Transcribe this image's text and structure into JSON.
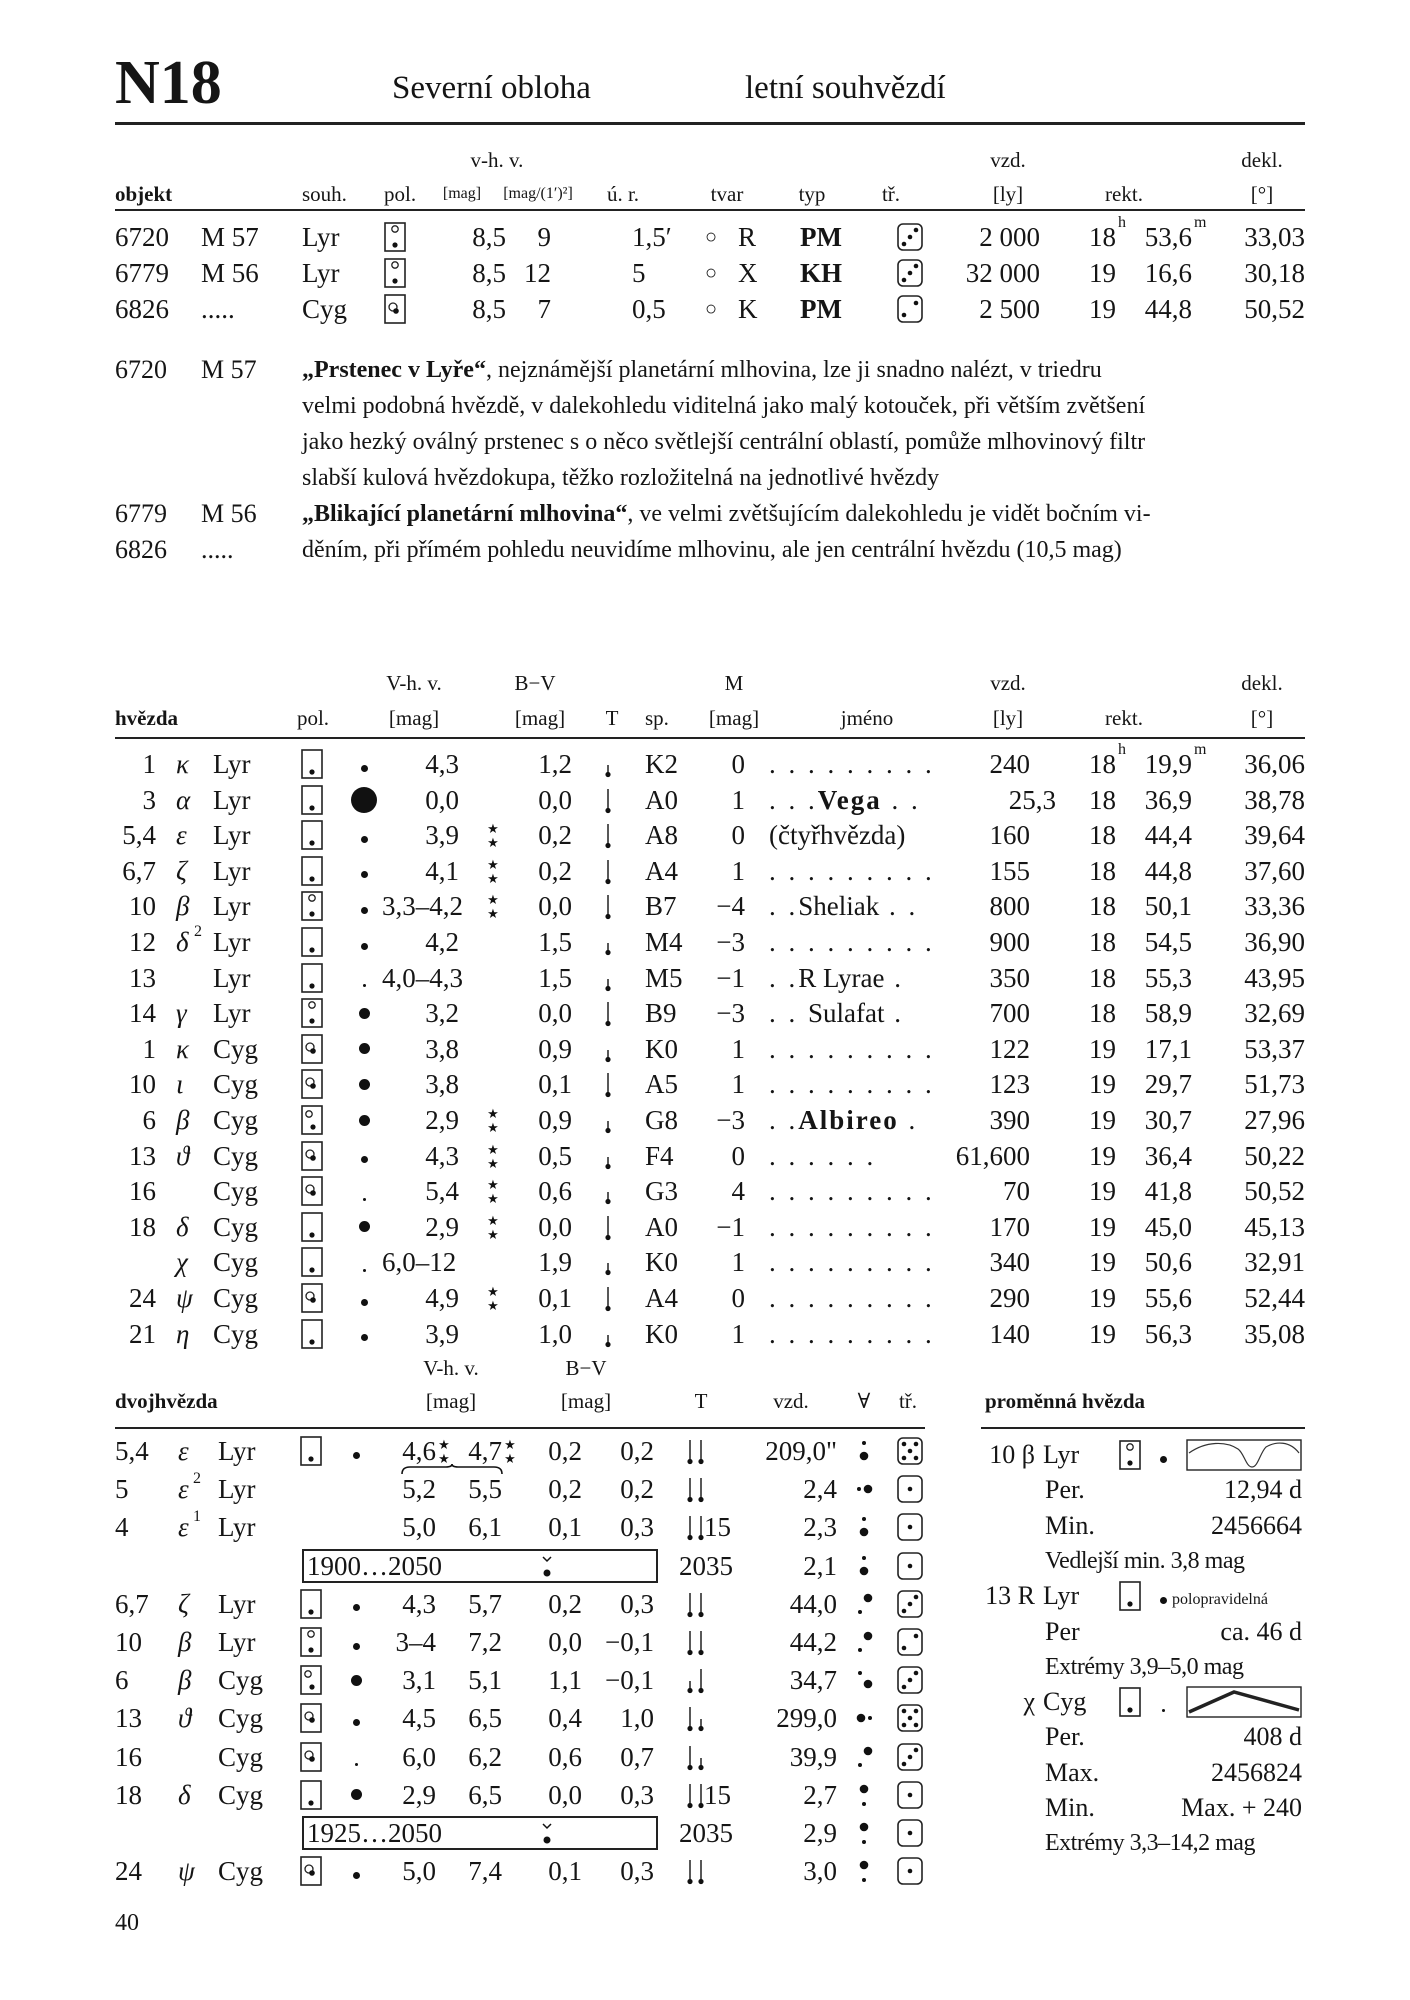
{
  "header": {
    "code": "N18",
    "region": "Severní obloha",
    "season": "letní souhvězdí"
  },
  "objects": {
    "headers": {
      "vhv": "v-h. v.",
      "vzd": "vzd.",
      "dekl": "dekl.",
      "objekt": "objekt",
      "souh": "souh.",
      "pol": "pol.",
      "mag": "[mag]",
      "sb": "[mag/(1′)²]",
      "ur": "ú. r.",
      "tvar": "tvar",
      "typ": "typ",
      "tr": "tř.",
      "ly": "[ly]",
      "rekt": "rekt.",
      "deg": "[°]"
    },
    "rows": [
      {
        "ngc": "6720",
        "m": "M 57",
        "const": "Lyr",
        "pol": "b",
        "vmag": "8,5",
        "sb": "9",
        "size": "1,5′",
        "shape_symbol": "○",
        "shape": "R",
        "type": "PM",
        "dice": 3,
        "vzd": "2 000",
        "ra_h": "18",
        "ra_m": "53,6",
        "dec": "33,03"
      },
      {
        "ngc": "6779",
        "m": "M 56",
        "const": "Lyr",
        "pol": "b",
        "vmag": "8,5",
        "sb": "12",
        "size": "5",
        "shape_symbol": "○",
        "shape": "X",
        "type": "KH",
        "dice": 3,
        "vzd": "32 000",
        "ra_h": "19",
        "ra_m": "16,6",
        "dec": "30,18"
      },
      {
        "ngc": "6826",
        "m": ".....",
        "const": "Cyg",
        "pol": "c",
        "vmag": "8,5",
        "sb": "7",
        "size": "0,5",
        "shape_symbol": "○",
        "shape": "K",
        "type": "PM",
        "dice": 2,
        "vzd": "2 500",
        "ra_h": "19",
        "ra_m": "44,8",
        "dec": "50,52"
      }
    ],
    "ra_units": [
      "h",
      "m"
    ]
  },
  "descriptions": [
    {
      "ngc": "6720",
      "m": "M 57",
      "bold": "„Prstenec v Lyře“",
      "text": ", nejznámější planetární mlhovina, lze ji snadno nalézt, v triedru"
    },
    {
      "ngc": "",
      "m": "",
      "bold": "",
      "text": "velmi podobná hvězdě, v dalekohledu viditelná jako malý kotouček, při větším zvětšení"
    },
    {
      "ngc": "",
      "m": "",
      "bold": "",
      "text": "jako hezký oválný prstenec s o něco světlejší centrální oblastí, pomůže mlhovinový filtr"
    },
    {
      "ngc": "",
      "m": "",
      "bold": "",
      "text": "slabší kulová hvězdokupa, těžko rozložitelná na jednotlivé hvězdy"
    },
    {
      "ngc": "6779",
      "m": "M 56",
      "bold": "„Blikající planetární mlhovina“",
      "text": ", ve velmi zvětšujícím dalekohledu je vidět bočním vi-"
    },
    {
      "ngc": "6826",
      "m": ".....",
      "bold": "",
      "text": "děním, při přímém pohledu neuvidíme mlhovinu, ale jen centrální hvězdu (10,5 mag)"
    }
  ],
  "stars": {
    "headers": {
      "vhv": "V-h. v.",
      "bv": "B−V",
      "M": "M",
      "vzd": "vzd.",
      "dekl": "dekl.",
      "hvezda": "hvězda",
      "pol": "pol.",
      "mag": "[mag]",
      "T": "T",
      "sp": "sp.",
      "jmeno": "jméno",
      "ly": "[ly]",
      "rekt": "rekt.",
      "deg": "[°]"
    },
    "rows": [
      {
        "num": "1",
        "greek": "κ",
        "sup": "",
        "const": "Lyr",
        "pol": "a",
        "dot": "s",
        "vmag": "4,3",
        "double": false,
        "bv": "1,2",
        "T": "short",
        "sp": "K2",
        "M": "0",
        "pre": ". . . . . . . . .",
        "name": "",
        "post": "",
        "bold": false,
        "vzd": "240",
        "ra_h": "18",
        "ra_m": "19,9",
        "dec": "36,06"
      },
      {
        "num": "3",
        "greek": "α",
        "sup": "",
        "const": "Lyr",
        "pol": "a",
        "dot": "xl",
        "vmag": "0,0",
        "double": false,
        "bv": "0,0",
        "T": "long",
        "sp": "A0",
        "M": "1",
        "pre": ". . .",
        "name": "Vega",
        "post": " . .",
        "bold": true,
        "vzd": "25,3",
        "ra_h": "18",
        "ra_m": "36,9",
        "dec": "38,78"
      },
      {
        "num": "5,4",
        "greek": "ε",
        "sup": "",
        "const": "Lyr",
        "pol": "a",
        "dot": "s",
        "vmag": "3,9",
        "double": true,
        "bv": "0,2",
        "T": "long",
        "sp": "A8",
        "M": "0",
        "pre": "",
        "name": "(čtyřhvězda)",
        "post": "",
        "bold": false,
        "vzd": "160",
        "ra_h": "18",
        "ra_m": "44,4",
        "dec": "39,64"
      },
      {
        "num": "6,7",
        "greek": "ζ",
        "sup": "",
        "const": "Lyr",
        "pol": "a",
        "dot": "s",
        "vmag": "4,1",
        "double": true,
        "bv": "0,2",
        "T": "long",
        "sp": "A4",
        "M": "1",
        "pre": ". . . . . . . . .",
        "name": "",
        "post": "",
        "bold": false,
        "vzd": "155",
        "ra_h": "18",
        "ra_m": "44,8",
        "dec": "37,60"
      },
      {
        "num": "10",
        "greek": "β",
        "sup": "",
        "const": "Lyr",
        "pol": "b",
        "dot": "s",
        "vmag": "3,3–4,2",
        "double": true,
        "bv": "0,0",
        "T": "long",
        "sp": "B7",
        "M": "−4",
        "pre": ". .",
        "name": "Sheliak",
        "post": " . .",
        "bold": false,
        "vzd": "800",
        "ra_h": "18",
        "ra_m": "50,1",
        "dec": "33,36"
      },
      {
        "num": "12",
        "greek": "δ",
        "sup": "2",
        "const": "Lyr",
        "pol": "a",
        "dot": "s",
        "vmag": "4,2",
        "double": false,
        "bv": "1,5",
        "T": "short",
        "sp": "M4",
        "M": "−3",
        "pre": ". . . . . . . . .",
        "name": "",
        "post": "",
        "bold": false,
        "vzd": "900",
        "ra_h": "18",
        "ra_m": "54,5",
        "dec": "36,90"
      },
      {
        "num": "13",
        "greek": "",
        "sup": "",
        "const": "Lyr",
        "pol": "a",
        "dot": "xs",
        "vmag": "4,0–4,3",
        "double": false,
        "bv": "1,5",
        "T": "short",
        "sp": "M5",
        "M": "−1",
        "pre": ". .",
        "name": "R Lyrae",
        "post": " .",
        "bold": false,
        "vzd": "350",
        "ra_h": "18",
        "ra_m": "55,3",
        "dec": "43,95"
      },
      {
        "num": "14",
        "greek": "γ",
        "sup": "",
        "const": "Lyr",
        "pol": "b",
        "dot": "m",
        "vmag": "3,2",
        "double": false,
        "bv": "0,0",
        "T": "long",
        "sp": "B9",
        "M": "−3",
        "pre": ". . ",
        "name": "Sulafat",
        "post": " .",
        "bold": false,
        "vzd": "700",
        "ra_h": "18",
        "ra_m": "58,9",
        "dec": "32,69"
      },
      {
        "num": "1",
        "greek": "κ",
        "sup": "",
        "const": "Cyg",
        "pol": "c",
        "dot": "m",
        "vmag": "3,8",
        "double": false,
        "bv": "0,9",
        "T": "short",
        "sp": "K0",
        "M": "1",
        "pre": ". . . . . . . . .",
        "name": "",
        "post": "",
        "bold": false,
        "vzd": "122",
        "ra_h": "19",
        "ra_m": "17,1",
        "dec": "53,37"
      },
      {
        "num": "10",
        "greek": "ι",
        "sup": "",
        "const": "Cyg",
        "pol": "c",
        "dot": "m",
        "vmag": "3,8",
        "double": false,
        "bv": "0,1",
        "T": "long",
        "sp": "A5",
        "M": "1",
        "pre": ". . . . . . . . .",
        "name": "",
        "post": "",
        "bold": false,
        "vzd": "123",
        "ra_h": "19",
        "ra_m": "29,7",
        "dec": "51,73"
      },
      {
        "num": "6",
        "greek": "β",
        "sup": "",
        "const": "Cyg",
        "pol": "d",
        "dot": "m",
        "vmag": "2,9",
        "double": true,
        "bv": "0,9",
        "T": "short",
        "sp": "G8",
        "M": "−3",
        "pre": ". .",
        "name": "Albireo",
        "post": " .",
        "bold": true,
        "vzd": "390",
        "ra_h": "19",
        "ra_m": "30,7",
        "dec": "27,96"
      },
      {
        "num": "13",
        "greek": "ϑ",
        "sup": "",
        "const": "Cyg",
        "pol": "c",
        "dot": "s",
        "vmag": "4,3",
        "double": true,
        "bv": "0,5",
        "T": "short",
        "sp": "F4",
        "M": "0",
        "pre": ". . . . . .",
        "name": "",
        "post": "",
        "bold": false,
        "vzd": "61,600",
        "ra_h": "19",
        "ra_m": "36,4",
        "dec": "50,22"
      },
      {
        "num": "16",
        "greek": "",
        "sup": "",
        "const": "Cyg",
        "pol": "c",
        "dot": "xs",
        "vmag": "5,4",
        "double": true,
        "bv": "0,6",
        "T": "short",
        "sp": "G3",
        "M": "4",
        "pre": ". . . . . . . . .",
        "name": "",
        "post": "",
        "bold": false,
        "vzd": "70",
        "ra_h": "19",
        "ra_m": "41,8",
        "dec": "50,52"
      },
      {
        "num": "18",
        "greek": "δ",
        "sup": "",
        "const": "Cyg",
        "pol": "a",
        "dot": "m",
        "vmag": "2,9",
        "double": true,
        "bv": "0,0",
        "T": "long",
        "sp": "A0",
        "M": "−1",
        "pre": ". . . . . . . . .",
        "name": "",
        "post": "",
        "bold": false,
        "vzd": "170",
        "ra_h": "19",
        "ra_m": "45,0",
        "dec": "45,13"
      },
      {
        "num": "",
        "greek": "χ",
        "sup": "",
        "const": "Cyg",
        "pol": "a",
        "dot": "xs",
        "vmag": "6,0–12",
        "double": false,
        "bv": "1,9",
        "T": "short",
        "sp": "K0",
        "M": "1",
        "pre": ". . . . . . . . .",
        "name": "",
        "post": "",
        "bold": false,
        "vzd": "340",
        "ra_h": "19",
        "ra_m": "50,6",
        "dec": "32,91"
      },
      {
        "num": "24",
        "greek": "ψ",
        "sup": "",
        "const": "Cyg",
        "pol": "c",
        "dot": "s",
        "vmag": "4,9",
        "double": true,
        "bv": "0,1",
        "T": "long",
        "sp": "A4",
        "M": "0",
        "pre": ". . . . . . . . .",
        "name": "",
        "post": "",
        "bold": false,
        "vzd": "290",
        "ra_h": "19",
        "ra_m": "55,6",
        "dec": "52,44"
      },
      {
        "num": "21",
        "greek": "η",
        "sup": "",
        "const": "Cyg",
        "pol": "a",
        "dot": "s",
        "vmag": "3,9",
        "double": false,
        "bv": "1,0",
        "T": "short",
        "sp": "K0",
        "M": "1",
        "pre": ". . . . . . . . .",
        "name": "",
        "post": "",
        "bold": false,
        "vzd": "140",
        "ra_h": "19",
        "ra_m": "56,3",
        "dec": "35,08"
      }
    ]
  },
  "doubles": {
    "headers": {
      "vhv": "V-h. v.",
      "bv": "B−V",
      "title": "dvojhvězda",
      "mag": "[mag]",
      "T": "T",
      "vzd": "vzd.",
      "pa": "∀",
      "tr": "tř."
    },
    "rows": [
      {
        "num": "5,4",
        "greek": "ε",
        "sup": "",
        "const": "Lyr",
        "pol": "a",
        "dot": "s",
        "v1": "4,6",
        "v2": "4,7",
        "stars": true,
        "bv1": "0,2",
        "bv2": "0,2",
        "T": [
          "long",
          "long"
        ],
        "T_extra": "",
        "vzd": "209,0\"",
        "pa": "small-above",
        "dice": 5
      },
      {
        "num": "5",
        "greek": "ε",
        "sup": "2",
        "const": "Lyr",
        "pol": "",
        "dot": "",
        "v1": "5,2",
        "v2": "5,5",
        "brace": true,
        "bv1": "0,2",
        "bv2": "0,2",
        "T": [
          "long",
          "long"
        ],
        "T_extra": "",
        "vzd": "2,4",
        "pa": "small-left",
        "dice": 1
      },
      {
        "num": "4",
        "greek": "ε",
        "sup": "1",
        "const": "Lyr",
        "pol": "",
        "dot": "",
        "v1": "5,0",
        "v2": "6,1",
        "bv1": "0,1",
        "bv2": "0,3",
        "T": [
          "long",
          "long"
        ],
        "T_extra": "15",
        "vzd": "2,3",
        "pa": "small-above",
        "dice": 1
      },
      {
        "orbit": "1900…2050",
        "year": "2035",
        "vzd": "2,1",
        "pa": "small-above",
        "dice": 1
      },
      {
        "num": "6,7",
        "greek": "ζ",
        "sup": "",
        "const": "Lyr",
        "pol": "a",
        "dot": "s",
        "v1": "4,3",
        "v2": "5,7",
        "bv1": "0,2",
        "bv2": "0,3",
        "T": [
          "long",
          "long"
        ],
        "T_extra": "",
        "vzd": "44,0",
        "pa": "small-below-left",
        "dice": 3
      },
      {
        "num": "10",
        "greek": "β",
        "sup": "",
        "const": "Lyr",
        "pol": "b",
        "dot": "s",
        "v1": "3–4",
        "v2": "7,2",
        "bv1": "0,0",
        "bv2": "−0,1",
        "T": [
          "long",
          "long"
        ],
        "T_extra": "",
        "vzd": "44,2",
        "pa": "small-below-left",
        "dice": 2
      },
      {
        "num": "6",
        "greek": "β",
        "sup": "",
        "const": "Cyg",
        "pol": "d",
        "dot": "m",
        "v1": "3,1",
        "v2": "5,1",
        "bv1": "1,1",
        "bv2": "−0,1",
        "T": [
          "short",
          "long"
        ],
        "T_extra": "",
        "vzd": "34,7",
        "pa": "small-above-left",
        "dice": 3
      },
      {
        "num": "13",
        "greek": "ϑ",
        "sup": "",
        "const": "Cyg",
        "pol": "c",
        "dot": "s",
        "v1": "4,5",
        "v2": "6,5",
        "bv1": "0,4",
        "bv2": "1,0",
        "T": [
          "long",
          "short"
        ],
        "T_extra": "",
        "vzd": "299,0",
        "pa": "small-right",
        "dice": 5
      },
      {
        "num": "16",
        "greek": "",
        "sup": "",
        "const": "Cyg",
        "pol": "c",
        "dot": "xs",
        "v1": "6,0",
        "v2": "6,2",
        "bv1": "0,6",
        "bv2": "0,7",
        "T": [
          "long",
          "short"
        ],
        "T_extra": "",
        "vzd": "39,9",
        "pa": "small-below-left",
        "dice": 3
      },
      {
        "num": "18",
        "greek": "δ",
        "sup": "",
        "const": "Cyg",
        "pol": "a",
        "dot": "m",
        "v1": "2,9",
        "v2": "6,5",
        "bv1": "0,0",
        "bv2": "0,3",
        "T": [
          "long",
          "long"
        ],
        "T_extra": "15",
        "vzd": "2,7",
        "pa": "small-below",
        "dice": 1
      },
      {
        "orbit": "1925…2050",
        "year": "2035",
        "vzd": "2,9",
        "pa": "small-below",
        "dice": 1
      },
      {
        "num": "24",
        "greek": "ψ",
        "sup": "",
        "const": "Cyg",
        "pol": "c",
        "dot": "s",
        "v1": "5,0",
        "v2": "7,4",
        "bv1": "0,1",
        "bv2": "0,3",
        "T": [
          "long",
          "long"
        ],
        "T_extra": "",
        "vzd": "3,0",
        "pa": "small-below",
        "dice": 1
      }
    ]
  },
  "variables": {
    "title": "proměnná hvězda",
    "items": [
      {
        "id": "10 β",
        "const": "Lyr",
        "pol": "b",
        "dot": "s",
        "type_label": "",
        "curve": "eclipsing",
        "lines": [
          {
            "label": "Per.",
            "value": "12,94 d"
          },
          {
            "label": "Min.",
            "value": "2456664"
          }
        ],
        "note": "Vedlejší min. 3,8 mag"
      },
      {
        "id": "13 R",
        "const": "Lyr",
        "pol": "a",
        "dot": "s",
        "type_label": "polopravidelná",
        "curve": "",
        "lines": [
          {
            "label": "Per",
            "value": "ca.  46 d"
          }
        ],
        "note": "Extrémy 3,9–5,0 mag"
      },
      {
        "id": "χ",
        "const": "Cyg",
        "pol": "a",
        "dot": "xs",
        "type_label": "",
        "curve": "mira",
        "lines": [
          {
            "label": "Per.",
            "value": "408 d"
          },
          {
            "label": "Max.",
            "value": "2456824"
          },
          {
            "label": "Min.",
            "value": "Max. + 240"
          }
        ],
        "note": "Extrémy 3,3–14,2 mag"
      }
    ]
  },
  "page_number": "40"
}
